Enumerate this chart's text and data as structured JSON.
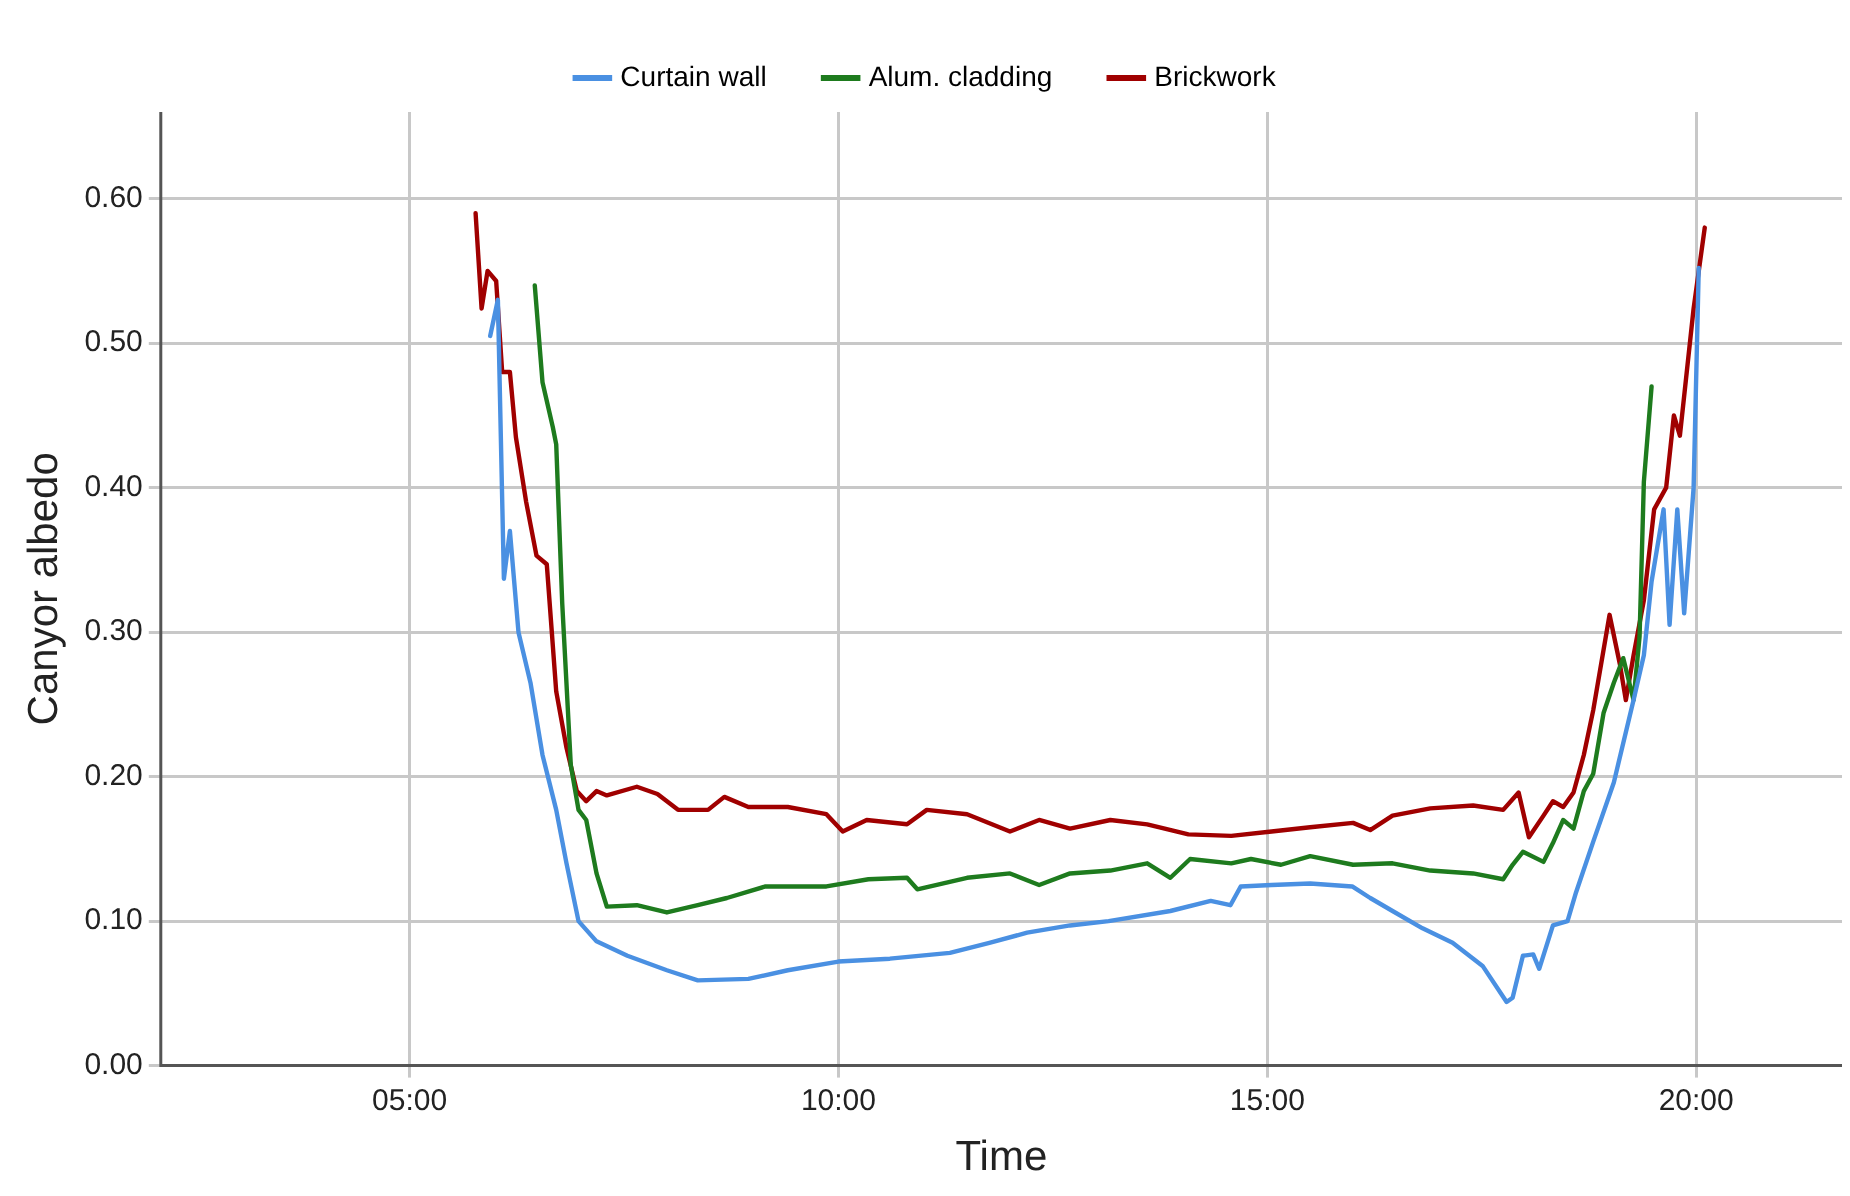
{
  "chart_data": {
    "type": "line",
    "xlabel": "Time",
    "ylabel": "Canyor albedo",
    "xlim": [
      2.1,
      21.7
    ],
    "xticks": [
      {
        "value": 5,
        "label": "05:00"
      },
      {
        "value": 10,
        "label": "10:00"
      },
      {
        "value": 15,
        "label": "15:00"
      },
      {
        "value": 20,
        "label": "20:00"
      }
    ],
    "ylim": [
      0,
      0.66
    ],
    "yticks": [
      {
        "value": 0,
        "label": "0.00"
      },
      {
        "value": 0.1,
        "label": "0.10"
      },
      {
        "value": 0.2,
        "label": "0.20"
      },
      {
        "value": 0.3,
        "label": "0.30"
      },
      {
        "value": 0.4,
        "label": "0.40"
      },
      {
        "value": 0.5,
        "label": "0.50"
      },
      {
        "value": 0.6,
        "label": "0.60"
      }
    ],
    "grid": true,
    "legend": "top",
    "marker": "none",
    "line_style": "solid",
    "series": [
      {
        "name": "Curtain wall",
        "color": "#4a90e2",
        "x": [
          5.94,
          6.03,
          6.1,
          6.17,
          6.27,
          6.41,
          6.55,
          6.71,
          6.83,
          6.97,
          7.18,
          7.54,
          8.0,
          8.36,
          8.95,
          9.41,
          10.0,
          10.6,
          11.3,
          11.76,
          12.2,
          12.7,
          13.15,
          13.87,
          14.34,
          14.57,
          14.69,
          15.05,
          15.5,
          15.99,
          16.2,
          16.46,
          16.81,
          17.16,
          17.51,
          17.79,
          17.86,
          17.98,
          18.1,
          18.17,
          18.33,
          18.5,
          18.6,
          18.8,
          19.04,
          19.27,
          19.39,
          19.48,
          19.62,
          19.69,
          19.78,
          19.86,
          19.97,
          20.03
        ],
        "values": [
          0.505,
          0.53,
          0.337,
          0.37,
          0.3,
          0.265,
          0.215,
          0.177,
          0.14,
          0.1,
          0.086,
          0.076,
          0.066,
          0.059,
          0.06,
          0.066,
          0.072,
          0.074,
          0.078,
          0.085,
          0.092,
          0.097,
          0.1,
          0.107,
          0.114,
          0.111,
          0.124,
          0.125,
          0.126,
          0.124,
          0.116,
          0.107,
          0.095,
          0.085,
          0.069,
          0.044,
          0.047,
          0.076,
          0.077,
          0.067,
          0.097,
          0.1,
          0.12,
          0.155,
          0.196,
          0.253,
          0.284,
          0.335,
          0.385,
          0.305,
          0.385,
          0.313,
          0.4,
          0.552
        ]
      },
      {
        "name": "Alum. cladding",
        "color": "#1e7b1e",
        "x": [
          6.46,
          6.55,
          6.67,
          6.71,
          6.78,
          6.88,
          6.97,
          7.06,
          7.18,
          7.3,
          7.65,
          8.0,
          8.36,
          8.7,
          9.15,
          9.86,
          10.35,
          10.8,
          10.92,
          11.5,
          12.0,
          12.34,
          12.7,
          13.17,
          13.6,
          13.87,
          14.1,
          14.58,
          14.81,
          15.16,
          15.5,
          16.0,
          16.46,
          16.9,
          17.4,
          17.75,
          17.86,
          17.98,
          18.22,
          18.33,
          18.45,
          18.57,
          18.69,
          18.8,
          18.92,
          19.04,
          19.15,
          19.27,
          19.34,
          19.39,
          19.48
        ],
        "values": [
          0.54,
          0.473,
          0.442,
          0.43,
          0.32,
          0.208,
          0.177,
          0.17,
          0.133,
          0.11,
          0.111,
          0.106,
          0.111,
          0.116,
          0.124,
          0.124,
          0.129,
          0.13,
          0.122,
          0.13,
          0.133,
          0.125,
          0.133,
          0.135,
          0.14,
          0.13,
          0.143,
          0.14,
          0.143,
          0.139,
          0.145,
          0.139,
          0.14,
          0.135,
          0.133,
          0.129,
          0.139,
          0.148,
          0.141,
          0.154,
          0.17,
          0.164,
          0.19,
          0.202,
          0.244,
          0.265,
          0.282,
          0.253,
          0.297,
          0.404,
          0.47
        ]
      },
      {
        "name": "Brickwork",
        "color": "#a00000",
        "x": [
          5.77,
          5.84,
          5.91,
          6.01,
          6.08,
          6.17,
          6.24,
          6.36,
          6.48,
          6.6,
          6.71,
          6.83,
          6.95,
          7.06,
          7.18,
          7.3,
          7.65,
          7.89,
          8.13,
          8.48,
          8.67,
          8.95,
          9.41,
          9.86,
          10.05,
          10.33,
          10.8,
          11.03,
          11.5,
          12.0,
          12.34,
          12.7,
          13.17,
          13.6,
          14.08,
          14.58,
          15.05,
          15.5,
          16.0,
          16.2,
          16.46,
          16.9,
          17.4,
          17.75,
          17.93,
          18.05,
          18.22,
          18.33,
          18.45,
          18.57,
          18.69,
          18.8,
          18.99,
          19.11,
          19.18,
          19.27,
          19.39,
          19.51,
          19.65,
          19.74,
          19.81,
          19.97,
          20.1
        ],
        "values": [
          0.59,
          0.524,
          0.55,
          0.543,
          0.48,
          0.48,
          0.435,
          0.39,
          0.353,
          0.347,
          0.259,
          0.22,
          0.19,
          0.183,
          0.19,
          0.187,
          0.193,
          0.188,
          0.177,
          0.177,
          0.186,
          0.179,
          0.179,
          0.174,
          0.162,
          0.17,
          0.167,
          0.177,
          0.174,
          0.162,
          0.17,
          0.164,
          0.17,
          0.167,
          0.16,
          0.159,
          0.162,
          0.165,
          0.168,
          0.163,
          0.173,
          0.178,
          0.18,
          0.177,
          0.189,
          0.158,
          0.173,
          0.183,
          0.179,
          0.189,
          0.215,
          0.246,
          0.312,
          0.278,
          0.253,
          0.284,
          0.322,
          0.385,
          0.4,
          0.45,
          0.436,
          0.524,
          0.58
        ]
      }
    ]
  }
}
